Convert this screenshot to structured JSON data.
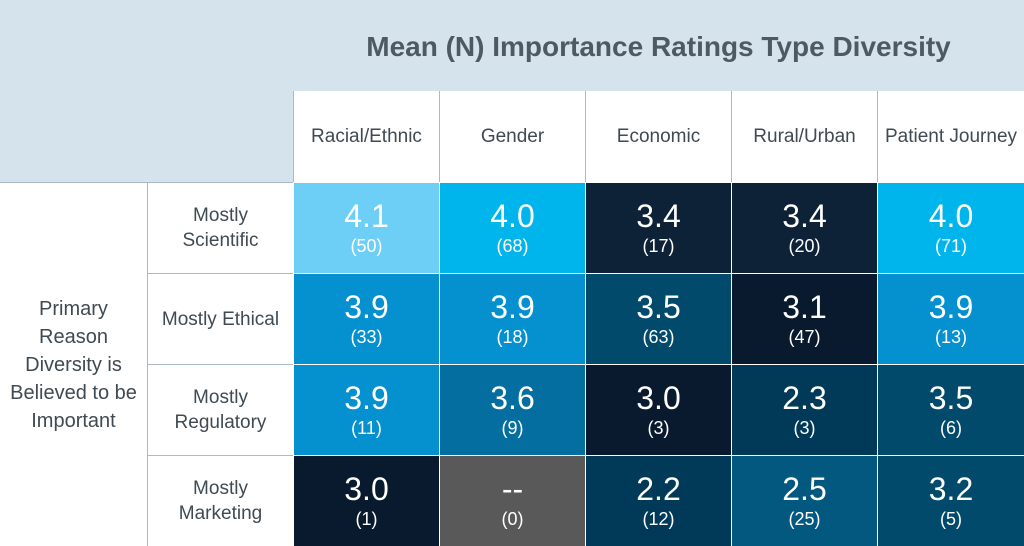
{
  "chart_data": {
    "type": "heatmap",
    "title": "Mean (N) Importance Ratings Type Diversity",
    "row_group_label": "Primary Reason Diversity is Believed to be Important",
    "columns": [
      "Racial/Ethnic",
      "Gender",
      "Economic",
      "Rural/Urban",
      "Patient Journey"
    ],
    "rows": [
      {
        "label": "Mostly Scientific",
        "cells": [
          {
            "value": "4.1",
            "n": "(50)",
            "color": "#6ecff6"
          },
          {
            "value": "4.0",
            "n": "(68)",
            "color": "#00b5ec"
          },
          {
            "value": "3.4",
            "n": "(17)",
            "color": "#0d2137"
          },
          {
            "value": "3.4",
            "n": "(20)",
            "color": "#0d2137"
          },
          {
            "value": "4.0",
            "n": "(71)",
            "color": "#00b5ec"
          }
        ]
      },
      {
        "label": "Mostly Ethical",
        "cells": [
          {
            "value": "3.9",
            "n": "(33)",
            "color": "#0590cf"
          },
          {
            "value": "3.9",
            "n": "(18)",
            "color": "#0590cf"
          },
          {
            "value": "3.5",
            "n": "(63)",
            "color": "#014a6b"
          },
          {
            "value": "3.1",
            "n": "(47)",
            "color": "#0a1a2e"
          },
          {
            "value": "3.9",
            "n": "(13)",
            "color": "#0590cf"
          }
        ]
      },
      {
        "label": "Mostly Regulatory",
        "cells": [
          {
            "value": "3.9",
            "n": "(11)",
            "color": "#0590cf"
          },
          {
            "value": "3.6",
            "n": "(9)",
            "color": "#046ea1"
          },
          {
            "value": "3.0",
            "n": "(3)",
            "color": "#0a1a2e"
          },
          {
            "value": "2.3",
            "n": "(3)",
            "color": "#013a58"
          },
          {
            "value": "3.5",
            "n": "(6)",
            "color": "#014a6b"
          }
        ]
      },
      {
        "label": "Mostly Marketing",
        "cells": [
          {
            "value": "3.0",
            "n": "(1)",
            "color": "#0a1a2e"
          },
          {
            "value": "--",
            "n": "(0)",
            "color": "#595959"
          },
          {
            "value": "2.2",
            "n": "(12)",
            "color": "#013a58"
          },
          {
            "value": "2.5",
            "n": "(25)",
            "color": "#02587f"
          },
          {
            "value": "3.2",
            "n": "(5)",
            "color": "#014a6b"
          }
        ]
      }
    ]
  },
  "colors": {
    "header_band": "#d5e3ec",
    "title_text": "#4d5a63",
    "label_text": "#3f4a52",
    "grid_lines": "#a8bac6"
  }
}
